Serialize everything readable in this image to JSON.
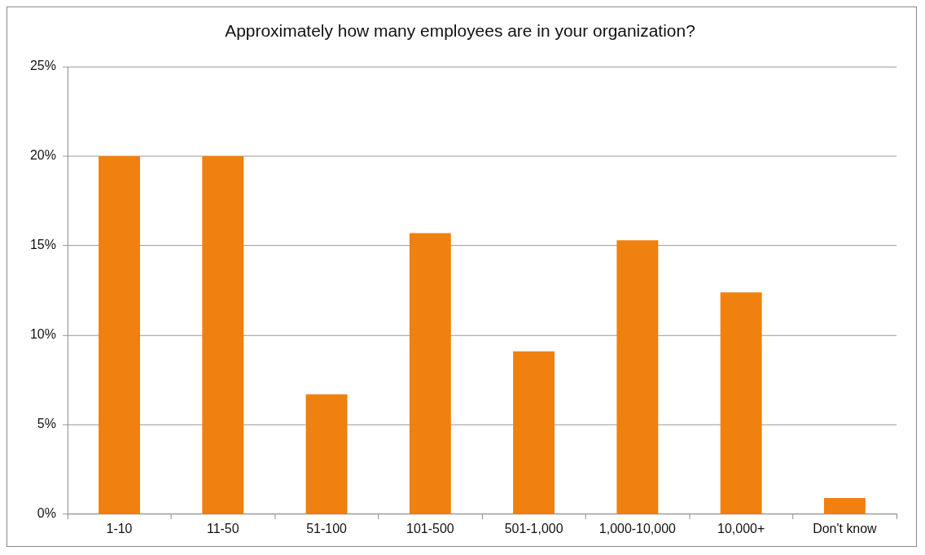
{
  "chart_data": {
    "type": "bar",
    "title": "Approximately how many employees are in your organization?",
    "categories": [
      "1-10",
      "11-50",
      "51-100",
      "101-500",
      "501-1,000",
      "1,000-10,000",
      "10,000+",
      "Don't know"
    ],
    "values": [
      20,
      20,
      6.7,
      15.7,
      9.1,
      15.3,
      12.4,
      0.9
    ],
    "color": "#f0800f",
    "ylim": [
      0,
      25
    ],
    "yticks": [
      {
        "value": 0,
        "label": "0%"
      },
      {
        "value": 5,
        "label": "5%"
      },
      {
        "value": 10,
        "label": "10%"
      },
      {
        "value": 15,
        "label": "15%"
      },
      {
        "value": 20,
        "label": "20%"
      },
      {
        "value": 25,
        "label": "25%"
      }
    ],
    "grid": "y"
  }
}
